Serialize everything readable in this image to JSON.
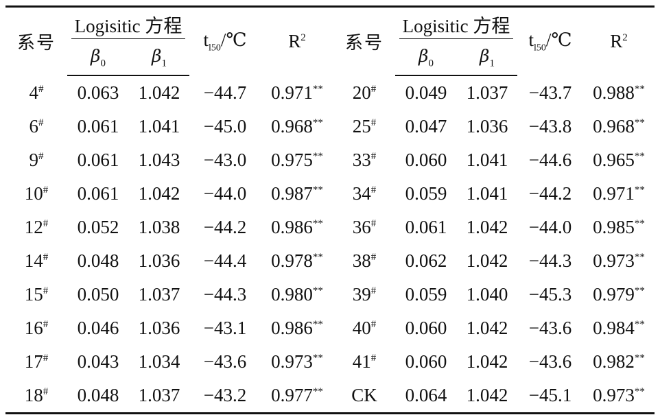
{
  "headers": {
    "line_no": "系号",
    "logistic_title": "Logisitic 方程",
    "beta0": "β",
    "beta0_sub": "0",
    "beta1": "β",
    "beta1_sub": "1",
    "t_label": "t",
    "t_sub": "l50",
    "t_unit": "/℃",
    "r_label": "R",
    "r_sup": "2"
  },
  "rows": [
    [
      {
        "id": "4",
        "mark": "#",
        "b0": "0.063",
        "b1": "1.042",
        "t": "−44.7",
        "r": "0.971",
        "sig": "**"
      },
      {
        "id": "20",
        "mark": "#",
        "b0": "0.049",
        "b1": "1.037",
        "t": "−43.7",
        "r": "0.988",
        "sig": "**"
      }
    ],
    [
      {
        "id": "6",
        "mark": "#",
        "b0": "0.061",
        "b1": "1.041",
        "t": "−45.0",
        "r": "0.968",
        "sig": "**"
      },
      {
        "id": "25",
        "mark": "#",
        "b0": "0.047",
        "b1": "1.036",
        "t": "−43.8",
        "r": "0.968",
        "sig": "**"
      }
    ],
    [
      {
        "id": "9",
        "mark": "#",
        "b0": "0.061",
        "b1": "1.043",
        "t": "−43.0",
        "r": "0.975",
        "sig": "**"
      },
      {
        "id": "33",
        "mark": "#",
        "b0": "0.060",
        "b1": "1.041",
        "t": "−44.6",
        "r": "0.965",
        "sig": "**"
      }
    ],
    [
      {
        "id": "10",
        "mark": "#",
        "b0": "0.061",
        "b1": "1.042",
        "t": "−44.0",
        "r": "0.987",
        "sig": "**"
      },
      {
        "id": "34",
        "mark": "#",
        "b0": "0.059",
        "b1": "1.041",
        "t": "−44.2",
        "r": "0.971",
        "sig": "**"
      }
    ],
    [
      {
        "id": "12",
        "mark": "#",
        "b0": "0.052",
        "b1": "1.038",
        "t": "−44.2",
        "r": "0.986",
        "sig": "**"
      },
      {
        "id": "36",
        "mark": "#",
        "b0": "0.061",
        "b1": "1.042",
        "t": "−44.0",
        "r": "0.985",
        "sig": "**"
      }
    ],
    [
      {
        "id": "14",
        "mark": "#",
        "b0": "0.048",
        "b1": "1.036",
        "t": "−44.4",
        "r": "0.978",
        "sig": "**"
      },
      {
        "id": "38",
        "mark": "#",
        "b0": "0.062",
        "b1": "1.042",
        "t": "−44.3",
        "r": "0.973",
        "sig": "**"
      }
    ],
    [
      {
        "id": "15",
        "mark": "#",
        "b0": "0.050",
        "b1": "1.037",
        "t": "−44.3",
        "r": "0.980",
        "sig": "**"
      },
      {
        "id": "39",
        "mark": "#",
        "b0": "0.059",
        "b1": "1.040",
        "t": "−45.3",
        "r": "0.979",
        "sig": "**"
      }
    ],
    [
      {
        "id": "16",
        "mark": "#",
        "b0": "0.046",
        "b1": "1.036",
        "t": "−43.1",
        "r": "0.986",
        "sig": "**"
      },
      {
        "id": "40",
        "mark": "#",
        "b0": "0.060",
        "b1": "1.042",
        "t": "−43.6",
        "r": "0.984",
        "sig": "**"
      }
    ],
    [
      {
        "id": "17",
        "mark": "#",
        "b0": "0.043",
        "b1": "1.034",
        "t": "−43.6",
        "r": "0.973",
        "sig": "**"
      },
      {
        "id": "41",
        "mark": "#",
        "b0": "0.060",
        "b1": "1.042",
        "t": "−43.6",
        "r": "0.982",
        "sig": "**"
      }
    ],
    [
      {
        "id": "18",
        "mark": "#",
        "b0": "0.048",
        "b1": "1.037",
        "t": "−43.2",
        "r": "0.977",
        "sig": "**"
      },
      {
        "id": "CK",
        "mark": "",
        "b0": "0.064",
        "b1": "1.042",
        "t": "−45.1",
        "r": "0.973",
        "sig": "**"
      }
    ]
  ]
}
